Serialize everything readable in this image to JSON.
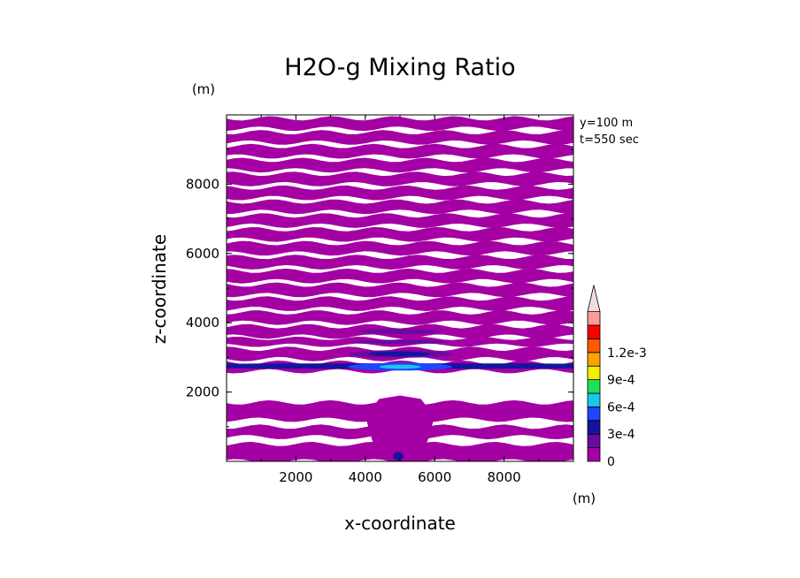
{
  "chart_data": {
    "type": "heatmap",
    "title": "H2O-g Mixing Ratio",
    "xlabel": "x-coordinate",
    "ylabel": "z-coordinate",
    "x_unit": "(m)",
    "y_unit": "(m)",
    "annotations": [
      "y=100 m",
      "t=550 sec"
    ],
    "xlim": [
      0,
      10000
    ],
    "ylim": [
      0,
      10000
    ],
    "xticks": [
      2000,
      4000,
      6000,
      8000
    ],
    "yticks": [
      2000,
      4000,
      6000,
      8000
    ],
    "xtick_labels": [
      "2000",
      "4000",
      "6000",
      "8000"
    ],
    "ytick_labels": [
      "2000",
      "4000",
      "6000",
      "8000"
    ],
    "colorbar": {
      "levels": [
        0,
        0.00015,
        0.0003,
        0.00045,
        0.0006,
        0.00075,
        0.0009,
        0.00105,
        0.0012,
        0.00135
      ],
      "colors": [
        "#a400a4",
        "#6a0aa0",
        "#1414a0",
        "#1e46ff",
        "#19c8e8",
        "#1ee05a",
        "#f0f000",
        "#ffa000",
        "#ff5a00",
        "#ff0000",
        "#ff9a9a"
      ],
      "extend_max": true,
      "labels": [
        "0",
        "3e-4",
        "6e-4",
        "9e-4",
        "1.2e-3"
      ],
      "label_values": [
        0,
        0.0003,
        0.0006,
        0.0009,
        0.0012
      ]
    },
    "bands": [
      {
        "z0": 9600,
        "z1": 9900,
        "level": 0
      },
      {
        "z0": 9200,
        "z1": 9500,
        "level": 0
      },
      {
        "z0": 8800,
        "z1": 9100,
        "level": 0
      },
      {
        "z0": 8400,
        "z1": 8700,
        "level": 0
      },
      {
        "z0": 8000,
        "z1": 8300,
        "level": 0
      },
      {
        "z0": 7600,
        "z1": 7900,
        "level": 0
      },
      {
        "z0": 7200,
        "z1": 7500,
        "level": 0
      },
      {
        "z0": 6800,
        "z1": 7100,
        "level": 0
      },
      {
        "z0": 6400,
        "z1": 6700,
        "level": 0
      },
      {
        "z0": 6000,
        "z1": 6300,
        "level": 0
      },
      {
        "z0": 5600,
        "z1": 5900,
        "level": 0
      },
      {
        "z0": 5200,
        "z1": 5500,
        "level": 0
      },
      {
        "z0": 4800,
        "z1": 5100,
        "level": 0
      },
      {
        "z0": 4400,
        "z1": 4700,
        "level": 0
      },
      {
        "z0": 4000,
        "z1": 4300,
        "level": 0
      },
      {
        "z0": 3600,
        "z1": 3900,
        "level": 0
      },
      {
        "z0": 3350,
        "z1": 3550,
        "level": 0
      },
      {
        "z0": 2950,
        "z1": 3250,
        "level": 0
      },
      {
        "z0": 2600,
        "z1": 2850,
        "level": 0
      },
      {
        "z0": 1200,
        "z1": 1700,
        "level": 0
      },
      {
        "z0": 700,
        "z1": 1000,
        "level": 0
      },
      {
        "z0": 0,
        "z1": 500,
        "level": 0
      }
    ],
    "features": [
      {
        "shape": "ellipse",
        "cx": 5000,
        "cz": 3450,
        "rx": 1400,
        "rz": 60,
        "level": 1
      },
      {
        "shape": "ellipse",
        "cx": 5000,
        "cz": 3100,
        "rx": 1500,
        "rz": 110,
        "level": 1
      },
      {
        "shape": "ellipse",
        "cx": 5000,
        "cz": 3100,
        "rx": 900,
        "rz": 70,
        "level": 2
      },
      {
        "shape": "ellipse",
        "cx": 5000,
        "cz": 2750,
        "rx": 9000,
        "rz": 80,
        "level": 2
      },
      {
        "shape": "ellipse",
        "cx": 5000,
        "cz": 2730,
        "rx": 1500,
        "rz": 110,
        "level": 3
      },
      {
        "shape": "ellipse",
        "cx": 5000,
        "cz": 2730,
        "rx": 600,
        "rz": 60,
        "level": 4
      },
      {
        "shape": "ellipse",
        "cx": 5000,
        "cz": 3750,
        "rx": 1200,
        "rz": 70,
        "level": 1
      },
      {
        "shape": "ellipse",
        "cx": 4950,
        "cz": 150,
        "rx": 150,
        "rz": 120,
        "level": 2
      }
    ],
    "central_blob": [
      [
        4000,
        1300
      ],
      [
        4400,
        1800
      ],
      [
        5000,
        1900
      ],
      [
        5600,
        1800
      ],
      [
        6000,
        1300
      ],
      [
        5800,
        600
      ],
      [
        5500,
        200
      ],
      [
        4500,
        200
      ],
      [
        4200,
        600
      ]
    ],
    "central_blob_level": 0
  }
}
